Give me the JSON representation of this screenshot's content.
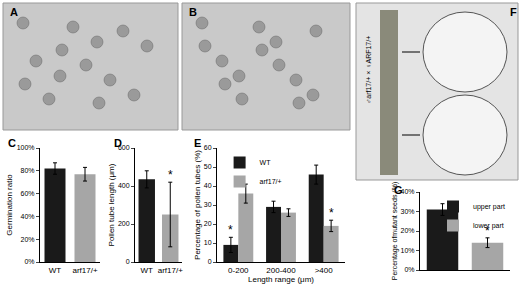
{
  "images": [
    {
      "panel": "A"
    },
    {
      "panel": "B"
    },
    {
      "panel": "F",
      "caption": "♂arf17/+ × ♀ARF17/+"
    }
  ],
  "chart_data": [
    {
      "type": "bar",
      "panel": "C",
      "y_label": "Germination ratio",
      "categories": [
        "WT",
        "arf17/+"
      ],
      "values": [
        82,
        77
      ],
      "errors": [
        5,
        6
      ],
      "colors": [
        "#1a1a1a",
        "#a6a6a6"
      ],
      "ylim": [
        0,
        100
      ],
      "yticks": [
        {
          "value": 0,
          "label": "0%"
        },
        {
          "value": 20,
          "label": "20%"
        },
        {
          "value": 40,
          "label": "40%"
        },
        {
          "value": 60,
          "label": "60%"
        },
        {
          "value": 80,
          "label": "80%"
        },
        {
          "value": 100,
          "label": "100%"
        }
      ]
    },
    {
      "type": "bar",
      "panel": "D",
      "y_label": "Pollen tube length (μm)",
      "categories": [
        "WT",
        "arf17/+"
      ],
      "values": [
        435,
        250
      ],
      "errors": [
        45,
        170
      ],
      "colors": [
        "#1a1a1a",
        "#a6a6a6"
      ],
      "ylim": [
        0,
        600
      ],
      "yticks": [
        0,
        200,
        400,
        600
      ],
      "annotations": [
        {
          "category": "arf17/+",
          "text": "*"
        }
      ]
    },
    {
      "type": "bar",
      "panel": "E",
      "y_label": "Percentage of pollen tubes (%)",
      "x_label": "Length range (μm)",
      "categories": [
        "0-200",
        "200-400",
        ">400"
      ],
      "series": [
        {
          "name": "WT",
          "color": "#1a1a1a",
          "values": [
            9,
            29,
            46
          ],
          "errors": [
            4,
            3,
            5
          ]
        },
        {
          "name": "arf17/+",
          "color": "#a6a6a6",
          "values": [
            36,
            26,
            19
          ],
          "errors": [
            5,
            2,
            3
          ]
        }
      ],
      "ylim": [
        0,
        60
      ],
      "yticks": [
        0,
        10,
        20,
        30,
        40,
        50,
        60
      ],
      "legend": "top left",
      "annotations": [
        {
          "category": "0-200",
          "series": "WT",
          "text": "*"
        },
        {
          "category": ">400",
          "series": "arf17/+",
          "text": "*"
        }
      ]
    },
    {
      "type": "bar",
      "panel": "G",
      "y_label": "Percentage ofmutant seeds (%)",
      "categories": [
        "upper part",
        "lower part"
      ],
      "values": [
        31,
        14
      ],
      "errors": [
        3,
        2.5
      ],
      "colors": [
        "#1a1a1a",
        "#a6a6a6"
      ],
      "ylim": [
        0,
        40
      ],
      "yticks": [
        {
          "value": 0,
          "label": "0%"
        },
        {
          "value": 10,
          "label": "10%"
        },
        {
          "value": 20,
          "label": "20%"
        },
        {
          "value": 30,
          "label": "30%"
        },
        {
          "value": 40,
          "label": "40%"
        }
      ],
      "legend": "top right",
      "tick_labels": "y",
      "annotations": [
        {
          "category": "lower part",
          "text": "*"
        }
      ]
    }
  ]
}
